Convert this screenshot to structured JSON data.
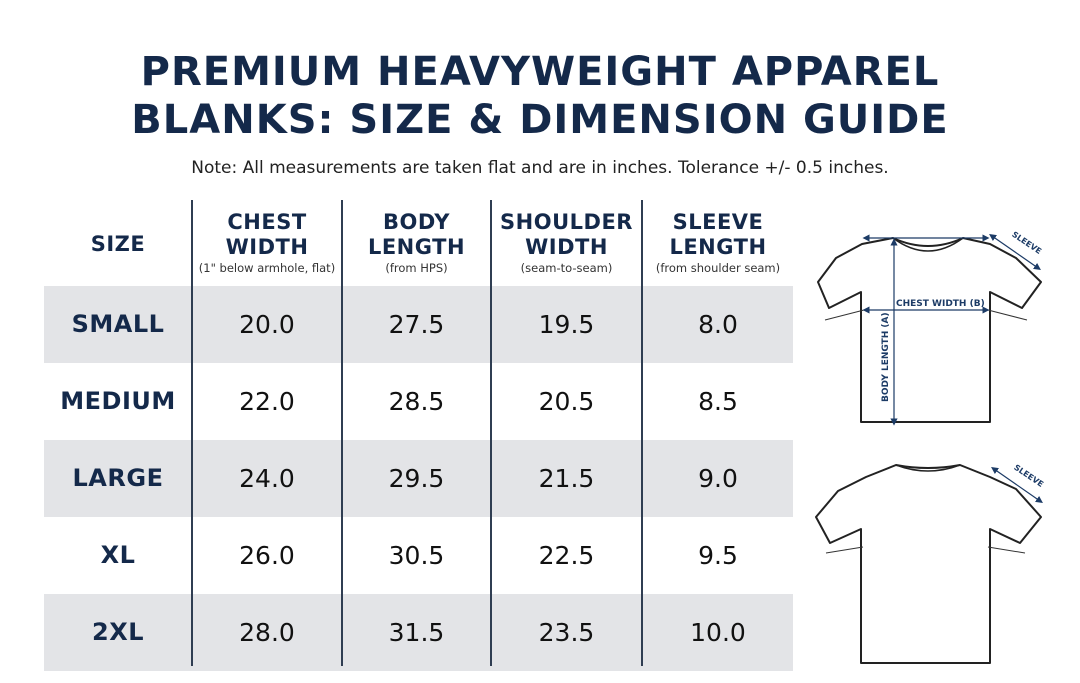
{
  "title": {
    "line1": "PREMIUM HEAVYWEIGHT APPAREL",
    "line2": "BLANKS: SIZE & DIMENSION GUIDE"
  },
  "note": "Note: All measurements are taken flat and are in inches. Tolerance +/- 0.5 inches.",
  "table": {
    "headers": [
      {
        "label": "SIZE",
        "line2": "",
        "sub": ""
      },
      {
        "label": "CHEST",
        "line2": "WIDTH",
        "sub": "(1\" below armhole, flat)"
      },
      {
        "label": "BODY",
        "line2": "LENGTH",
        "sub": "(from HPS)"
      },
      {
        "label": "SHOULDER",
        "line2": "WIDTH",
        "sub": "(seam-to-seam)"
      },
      {
        "label": "SLEEVE",
        "line2": "LENGTH",
        "sub": "(from shoulder seam)"
      }
    ],
    "rows": [
      {
        "size": "SMALL",
        "chest": "20.0",
        "body": "27.5",
        "shoulder": "19.5",
        "sleeve": "8.0"
      },
      {
        "size": "MEDIUM",
        "chest": "22.0",
        "body": "28.5",
        "shoulder": "20.5",
        "sleeve": "8.5"
      },
      {
        "size": "LARGE",
        "chest": "24.0",
        "body": "29.5",
        "shoulder": "21.5",
        "sleeve": "9.0"
      },
      {
        "size": "XL",
        "chest": "26.0",
        "body": "30.5",
        "shoulder": "22.5",
        "sleeve": "9.5"
      },
      {
        "size": "2XL",
        "chest": "28.0",
        "body": "31.5",
        "shoulder": "23.5",
        "sleeve": "10.0"
      }
    ]
  },
  "diagram": {
    "sleeve_label": "SLEEVE",
    "chest_label": "CHEST WIDTH (B)",
    "body_label": "BODY LENGTH (A)",
    "sleeve_label_back": "SLEEVE"
  }
}
